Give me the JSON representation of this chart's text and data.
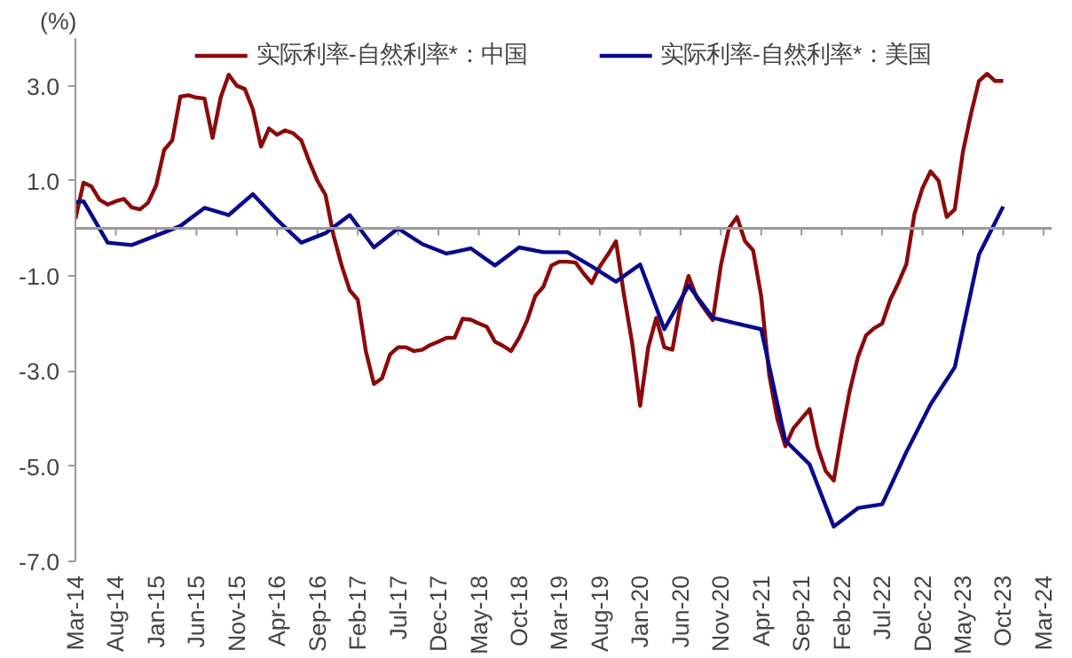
{
  "chart_data": {
    "type": "line",
    "ylabel": "(%)",
    "x": [
      "2014-03",
      "2014-04",
      "2014-05",
      "2014-06",
      "2014-07",
      "2014-08",
      "2014-09",
      "2014-10",
      "2014-11",
      "2014-12",
      "2015-01",
      "2015-02",
      "2015-03",
      "2015-04",
      "2015-05",
      "2015-06",
      "2015-07",
      "2015-08",
      "2015-09",
      "2015-10",
      "2015-11",
      "2015-12",
      "2016-01",
      "2016-02",
      "2016-03",
      "2016-04",
      "2016-05",
      "2016-06",
      "2016-07",
      "2016-08",
      "2016-09",
      "2016-10",
      "2016-11",
      "2016-12",
      "2017-01",
      "2017-02",
      "2017-03",
      "2017-04",
      "2017-05",
      "2017-06",
      "2017-07",
      "2017-08",
      "2017-09",
      "2017-10",
      "2017-11",
      "2017-12",
      "2018-01",
      "2018-02",
      "2018-03",
      "2018-04",
      "2018-05",
      "2018-06",
      "2018-07",
      "2018-08",
      "2018-09",
      "2018-10",
      "2018-11",
      "2018-12",
      "2019-01",
      "2019-02",
      "2019-03",
      "2019-04",
      "2019-05",
      "2019-06",
      "2019-07",
      "2019-08",
      "2019-09",
      "2019-10",
      "2019-11",
      "2019-12",
      "2020-01",
      "2020-02",
      "2020-03",
      "2020-04",
      "2020-05",
      "2020-06",
      "2020-07",
      "2020-08",
      "2020-09",
      "2020-10",
      "2020-11",
      "2020-12",
      "2021-01",
      "2021-02",
      "2021-03",
      "2021-04",
      "2021-05",
      "2021-06",
      "2021-07",
      "2021-08",
      "2021-09",
      "2021-10",
      "2021-11",
      "2021-12",
      "2022-01",
      "2022-02",
      "2022-03",
      "2022-04",
      "2022-05",
      "2022-06",
      "2022-07",
      "2022-08",
      "2022-09",
      "2022-10",
      "2022-11",
      "2022-12",
      "2023-01",
      "2023-02",
      "2023-03",
      "2023-04",
      "2023-05",
      "2023-06",
      "2023-07",
      "2023-08",
      "2023-09",
      "2023-10"
    ],
    "series": [
      {
        "name": "实际利率-自然利率*：中国",
        "color": "#8b0a0a",
        "values": [
          0.2,
          0.96,
          0.88,
          0.6,
          0.5,
          0.57,
          0.62,
          0.44,
          0.4,
          0.54,
          0.9,
          1.65,
          1.85,
          2.77,
          2.8,
          2.75,
          2.73,
          1.9,
          2.75,
          3.23,
          3.0,
          2.93,
          2.5,
          1.72,
          2.1,
          1.97,
          2.06,
          2.0,
          1.85,
          1.4,
          1.0,
          0.7,
          -0.15,
          -0.78,
          -1.3,
          -1.5,
          -2.58,
          -3.27,
          -3.15,
          -2.65,
          -2.5,
          -2.5,
          -2.58,
          -2.55,
          -2.45,
          -2.38,
          -2.3,
          -2.3,
          -1.9,
          -1.92,
          -2.0,
          -2.07,
          -2.38,
          -2.47,
          -2.58,
          -2.3,
          -1.93,
          -1.42,
          -1.23,
          -0.78,
          -0.7,
          -0.7,
          -0.72,
          -0.95,
          -1.15,
          -0.8,
          -0.55,
          -0.27,
          -1.4,
          -2.4,
          -3.73,
          -2.5,
          -1.88,
          -2.5,
          -2.55,
          -1.6,
          -1.0,
          -1.45,
          -1.7,
          -1.93,
          -0.78,
          0.0,
          0.24,
          -0.27,
          -0.46,
          -1.42,
          -3.08,
          -4.0,
          -4.58,
          -4.2,
          -4.0,
          -3.8,
          -4.6,
          -5.1,
          -5.3,
          -4.3,
          -3.4,
          -2.7,
          -2.25,
          -2.1,
          -2.0,
          -1.5,
          -1.15,
          -0.75,
          0.3,
          0.85,
          1.2,
          1.0,
          0.24,
          0.4,
          1.6,
          2.4,
          3.1,
          3.25,
          3.1,
          3.1
        ]
      },
      {
        "name": "实际利率-自然利率*：美国",
        "color": "#0a0a8c",
        "x": [
          "2014-03",
          "2014-04",
          "2014-07",
          "2014-10",
          "2015-01",
          "2015-04",
          "2015-07",
          "2015-10",
          "2016-01",
          "2016-04",
          "2016-07",
          "2016-10",
          "2017-01",
          "2017-04",
          "2017-07",
          "2017-10",
          "2018-01",
          "2018-04",
          "2018-07",
          "2018-10",
          "2019-01",
          "2019-04",
          "2019-07",
          "2019-10",
          "2020-01",
          "2020-04",
          "2020-07",
          "2020-10",
          "2021-01",
          "2021-04",
          "2021-07",
          "2021-10",
          "2022-01",
          "2022-04",
          "2022-07",
          "2022-10",
          "2023-01",
          "2023-04",
          "2023-07",
          "2023-10"
        ],
        "values": [
          0.55,
          0.57,
          -0.3,
          -0.35,
          -0.15,
          0.05,
          0.43,
          0.28,
          0.72,
          0.18,
          -0.3,
          -0.1,
          0.28,
          -0.4,
          0.0,
          -0.33,
          -0.53,
          -0.42,
          -0.78,
          -0.4,
          -0.5,
          -0.5,
          -0.8,
          -1.12,
          -0.76,
          -2.12,
          -1.2,
          -1.88,
          -2.0,
          -2.12,
          -4.46,
          -4.96,
          -6.27,
          -5.88,
          -5.8,
          -4.7,
          -3.7,
          -2.92,
          -0.55,
          0.46
        ]
      }
    ],
    "xlim": [
      "2014-03",
      "2024-04"
    ],
    "xticks": [
      {
        "value": "2014-03",
        "label": "Mar-14"
      },
      {
        "value": "2014-08",
        "label": "Aug-14"
      },
      {
        "value": "2015-01",
        "label": "Jan-15"
      },
      {
        "value": "2015-06",
        "label": "Jun-15"
      },
      {
        "value": "2015-11",
        "label": "Nov-15"
      },
      {
        "value": "2016-04",
        "label": "Apr-16"
      },
      {
        "value": "2016-09",
        "label": "Sep-16"
      },
      {
        "value": "2017-02",
        "label": "Feb-17"
      },
      {
        "value": "2017-07",
        "label": "Jul-17"
      },
      {
        "value": "2017-12",
        "label": "Dec-17"
      },
      {
        "value": "2018-05",
        "label": "May-18"
      },
      {
        "value": "2018-10",
        "label": "Oct-18"
      },
      {
        "value": "2019-03",
        "label": "Mar-19"
      },
      {
        "value": "2019-08",
        "label": "Aug-19"
      },
      {
        "value": "2020-01",
        "label": "Jan-20"
      },
      {
        "value": "2020-06",
        "label": "Jun-20"
      },
      {
        "value": "2020-11",
        "label": "Nov-20"
      },
      {
        "value": "2021-04",
        "label": "Apr-21"
      },
      {
        "value": "2021-09",
        "label": "Sep-21"
      },
      {
        "value": "2022-02",
        "label": "Feb-22"
      },
      {
        "value": "2022-07",
        "label": "Jul-22"
      },
      {
        "value": "2022-12",
        "label": "Dec-22"
      },
      {
        "value": "2023-05",
        "label": "May-23"
      },
      {
        "value": "2023-10",
        "label": "Oct-23"
      },
      {
        "value": "2024-03",
        "label": "Mar-24"
      }
    ],
    "ylim": [
      -7,
      4
    ],
    "yticks": [
      {
        "value": 3,
        "label": "3.0"
      },
      {
        "value": 1,
        "label": "1.0"
      },
      {
        "value": -1,
        "label": "-1.0"
      },
      {
        "value": -3,
        "label": "-3.0"
      },
      {
        "value": -5,
        "label": "-5.0"
      },
      {
        "value": -7,
        "label": "-7.0"
      }
    ],
    "grid": false,
    "legend": "top",
    "line_style": "solid",
    "marker": "none"
  }
}
